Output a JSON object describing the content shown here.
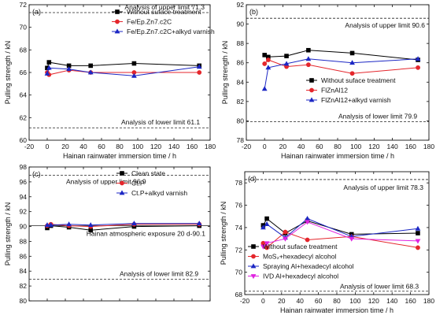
{
  "chart_data": [
    {
      "panel": "(a)",
      "type": "line",
      "xlabel": "Hainan rainwater immersion time / h",
      "ylabel": "Pulling strength / kN",
      "xlim": [
        -20,
        180
      ],
      "ylim": [
        60,
        72
      ],
      "xticks": [
        -20,
        0,
        20,
        40,
        60,
        80,
        100,
        120,
        140,
        160,
        180
      ],
      "yticks": [
        60,
        62,
        64,
        66,
        68,
        70,
        72
      ],
      "show_xticklabels": true,
      "legend_position": "top-right",
      "annotations": [
        {
          "text": "Analysis of upper limit 71.3",
          "y": 71.3
        },
        {
          "text": "Analysis of lower limit 61.1",
          "y": 61.1
        }
      ],
      "series": [
        {
          "name": "Without suface treatment",
          "marker": "square",
          "color": "#000000",
          "x": [
            0,
            2,
            24,
            48,
            96,
            168
          ],
          "y": [
            66.4,
            66.9,
            66.6,
            66.6,
            66.8,
            66.6
          ]
        },
        {
          "name": "Fe/Ep.Zn7.c2C",
          "marker": "circle",
          "color": "#e4262c",
          "x": [
            0,
            2,
            24,
            48,
            96,
            168
          ],
          "y": [
            66.0,
            65.8,
            66.2,
            66.0,
            66.0,
            66.0
          ]
        },
        {
          "name": "Fe/Ep.Zn7.c2C+alkyd varnish",
          "marker": "triangle",
          "color": "#1c27c4",
          "x": [
            0,
            2,
            24,
            48,
            96,
            168
          ],
          "y": [
            65.9,
            66.4,
            66.3,
            66.0,
            65.7,
            66.5
          ]
        }
      ]
    },
    {
      "panel": "(b)",
      "type": "line",
      "xlabel": "Hainan rainwater immersion time / h",
      "ylabel": "Pulling strength / kN",
      "xlim": [
        -20,
        180
      ],
      "ylim": [
        78,
        92
      ],
      "xticks": [
        -20,
        0,
        20,
        40,
        60,
        80,
        100,
        120,
        140,
        160,
        180
      ],
      "yticks": [
        78,
        80,
        82,
        84,
        86,
        88,
        90,
        92
      ],
      "show_xticklabels": true,
      "legend_position": "bottom-right",
      "annotations": [
        {
          "text": "Analysis of upper limit 90.6",
          "y": 90.6
        },
        {
          "text": "Analysis of lower limit 79.9",
          "y": 79.9
        }
      ],
      "series": [
        {
          "name": "Without suface treatment",
          "marker": "square",
          "color": "#000000",
          "x": [
            0,
            4,
            24,
            48,
            96,
            168
          ],
          "y": [
            86.8,
            86.6,
            86.7,
            87.3,
            87.0,
            86.3
          ]
        },
        {
          "name": "FlZnAl12",
          "marker": "circle",
          "color": "#e4262c",
          "x": [
            0,
            4,
            24,
            48,
            96,
            168
          ],
          "y": [
            85.9,
            86.3,
            85.6,
            85.8,
            84.9,
            85.5
          ]
        },
        {
          "name": "FlZnAl12+alkyd varnish",
          "marker": "triangle",
          "color": "#1c27c4",
          "x": [
            0,
            4,
            24,
            48,
            96,
            168
          ],
          "y": [
            83.3,
            85.5,
            85.9,
            86.4,
            86.0,
            86.4
          ]
        }
      ]
    },
    {
      "panel": "(c)",
      "type": "line",
      "xlabel": "",
      "ylabel": "Pulling strength / kN",
      "xlim": [
        -20,
        180
      ],
      "ylim": [
        80,
        98
      ],
      "xticks": [
        -20,
        0,
        20,
        40,
        60,
        80,
        100,
        120,
        140,
        160,
        180
      ],
      "yticks": [
        80,
        82,
        84,
        86,
        88,
        90,
        92,
        94,
        96,
        98
      ],
      "show_xticklabels": false,
      "legend_position": "top-right",
      "annotations": [
        {
          "text": "Analysis of upper limit 96.9",
          "y": 96.9
        },
        {
          "text": "Hainan atmospheric exposure 20 d-90.1",
          "y": 90.1
        },
        {
          "text": "Analysis of lower limit 82.9",
          "y": 82.9
        }
      ],
      "series": [
        {
          "name": "Clean state",
          "marker": "square",
          "color": "#000000",
          "x": [
            0,
            4,
            24,
            48,
            96,
            168
          ],
          "y": [
            89.8,
            90.1,
            89.9,
            89.5,
            90.0,
            90.1
          ]
        },
        {
          "name": "Ct.P",
          "marker": "circle",
          "color": "#e4262c",
          "x": [
            0,
            4,
            24,
            48,
            96,
            168
          ],
          "y": [
            90.1,
            90.3,
            90.1,
            90.0,
            90.3,
            90.3
          ]
        },
        {
          "name": "Ct.P+alkyd varnish",
          "marker": "triangle",
          "color": "#1c27c4",
          "x": [
            0,
            4,
            24,
            48,
            96,
            168
          ],
          "y": [
            90.2,
            90.2,
            90.3,
            90.2,
            90.4,
            90.4
          ]
        }
      ]
    },
    {
      "panel": "(d)",
      "type": "line",
      "xlabel": "Hainan rainwater immersion time / h",
      "ylabel": "Pulling strength / kN",
      "xlim": [
        -20,
        180
      ],
      "ylim": [
        68,
        79
      ],
      "xticks": [
        -20,
        0,
        20,
        40,
        60,
        80,
        100,
        120,
        140,
        160,
        180
      ],
      "yticks": [
        68,
        70,
        72,
        74,
        76,
        78
      ],
      "show_xticklabels": true,
      "legend_position": "bottom-right",
      "annotations": [
        {
          "text": "Analysis of upper limit 78.3",
          "y": 78.3
        },
        {
          "text": "Analysis of lower limit 68.3",
          "y": 68.3
        }
      ],
      "series": [
        {
          "name": "Without suface treatment",
          "marker": "square",
          "color": "#000000",
          "x": [
            0,
            4,
            24,
            48,
            96,
            168
          ],
          "y": [
            74.2,
            74.8,
            73.5,
            74.6,
            73.4,
            73.5
          ]
        },
        {
          "name": "MoS₂+hexadecyl alcohol",
          "marker": "circle",
          "color": "#e4262c",
          "x": [
            0,
            4,
            24,
            48,
            96,
            168
          ],
          "y": [
            72.6,
            72.2,
            73.6,
            72.9,
            73.2,
            72.2
          ]
        },
        {
          "name": "Spraying Al+hexadecyl alcohol",
          "marker": "triangle",
          "color": "#1c27c4",
          "x": [
            0,
            4,
            24,
            48,
            96,
            168
          ],
          "y": [
            74.0,
            74.3,
            73.1,
            74.8,
            73.2,
            73.9
          ]
        },
        {
          "name": "IVD Al+hexadecyl alcohol",
          "marker": "tri-down",
          "color": "#e022e0",
          "x": [
            0,
            4,
            24,
            48,
            96,
            168
          ],
          "y": [
            72.3,
            72.6,
            73.0,
            74.5,
            73.0,
            72.8
          ]
        }
      ]
    }
  ]
}
